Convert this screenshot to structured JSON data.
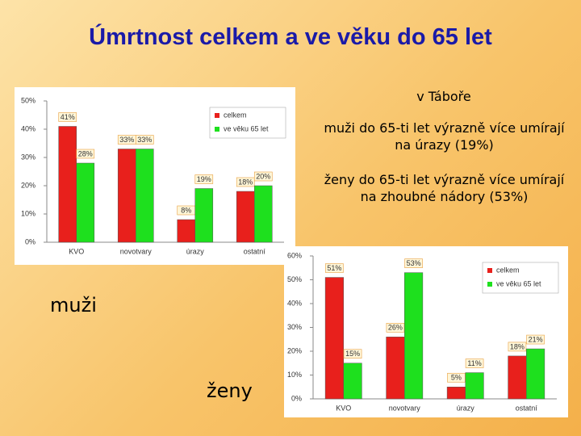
{
  "slide": {
    "title": "Úmrtnost celkem a ve věku do 65 let",
    "subtitle": "v Táboře",
    "notes": [
      "muži do 65-ti let výrazně více umírají na úrazy (19%)",
      "ženy do 65-ti let výrazně více umírají na zhoubné nádory (53%)"
    ],
    "label_men": "muži",
    "label_women": "ženy"
  },
  "chart_data": [
    {
      "type": "bar",
      "categories": [
        "KVO",
        "novotvary",
        "úrazy",
        "ostatní"
      ],
      "series": [
        {
          "name": "celkem",
          "color": "#e8201c",
          "values": [
            41,
            33,
            8,
            18
          ],
          "value_labels": [
            "41%",
            "33%",
            "8%",
            "18%"
          ]
        },
        {
          "name": "ve věku 65 let",
          "color": "#1ee01e",
          "values": [
            28,
            33,
            19,
            20
          ],
          "value_labels": [
            "28%",
            "33%",
            "19%",
            "20%"
          ]
        }
      ],
      "ylim": [
        0,
        50
      ],
      "yticks": [
        {
          "value": 0,
          "label": "0%"
        },
        {
          "value": 10,
          "label": "10%"
        },
        {
          "value": 20,
          "label": "20%"
        },
        {
          "value": 30,
          "label": "30%"
        },
        {
          "value": 40,
          "label": "40%"
        },
        {
          "value": 50,
          "label": "50%"
        }
      ],
      "grid": false,
      "legend": "upper right"
    },
    {
      "type": "bar",
      "categories": [
        "KVO",
        "novotvary",
        "úrazy",
        "ostatní"
      ],
      "series": [
        {
          "name": "celkem",
          "color": "#e8201c",
          "values": [
            51,
            26,
            5,
            18
          ],
          "value_labels": [
            "51%",
            "26%",
            "5%",
            "18%"
          ]
        },
        {
          "name": "ve věku 65 let",
          "color": "#1ee01e",
          "values": [
            15,
            53,
            11,
            21
          ],
          "value_labels": [
            "15%",
            "53%",
            "11%",
            "21%"
          ]
        }
      ],
      "ylim": [
        0,
        60
      ],
      "yticks": [
        {
          "value": 0,
          "label": "0%"
        },
        {
          "value": 10,
          "label": "10%"
        },
        {
          "value": 20,
          "label": "20%"
        },
        {
          "value": 30,
          "label": "30%"
        },
        {
          "value": 40,
          "label": "40%"
        },
        {
          "value": 50,
          "label": "50%"
        },
        {
          "value": 60,
          "label": "60%"
        }
      ],
      "grid": false,
      "legend": "upper right"
    }
  ]
}
